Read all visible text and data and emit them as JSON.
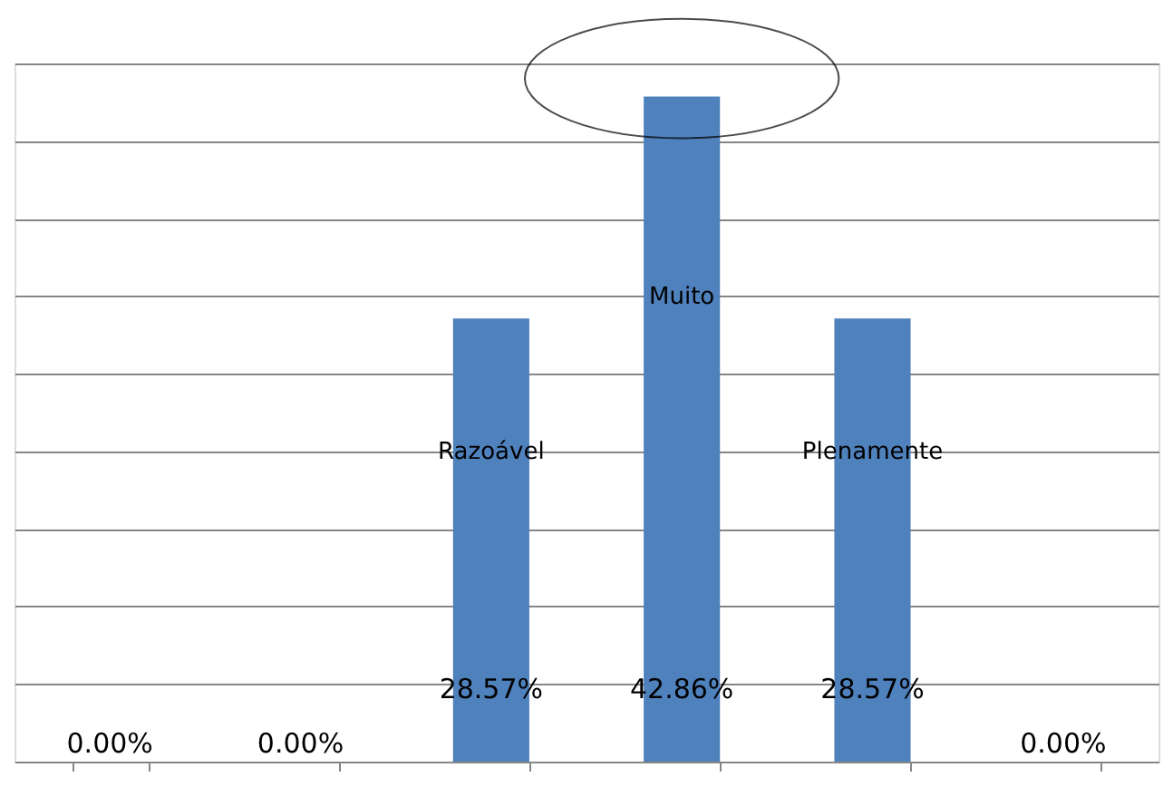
{
  "chart_data": {
    "type": "bar",
    "categories": [
      null,
      null,
      "Razoável",
      "Muito",
      "Plenamente",
      null
    ],
    "values": [
      0,
      0,
      28.57,
      42.86,
      28.57,
      0
    ],
    "value_labels": [
      "0.00%",
      "0.00%",
      "28.57%",
      "42.86%",
      "28.57%",
      "0.00%"
    ],
    "color": "#4f81bd",
    "grid": "y",
    "tick_labels": false
  }
}
